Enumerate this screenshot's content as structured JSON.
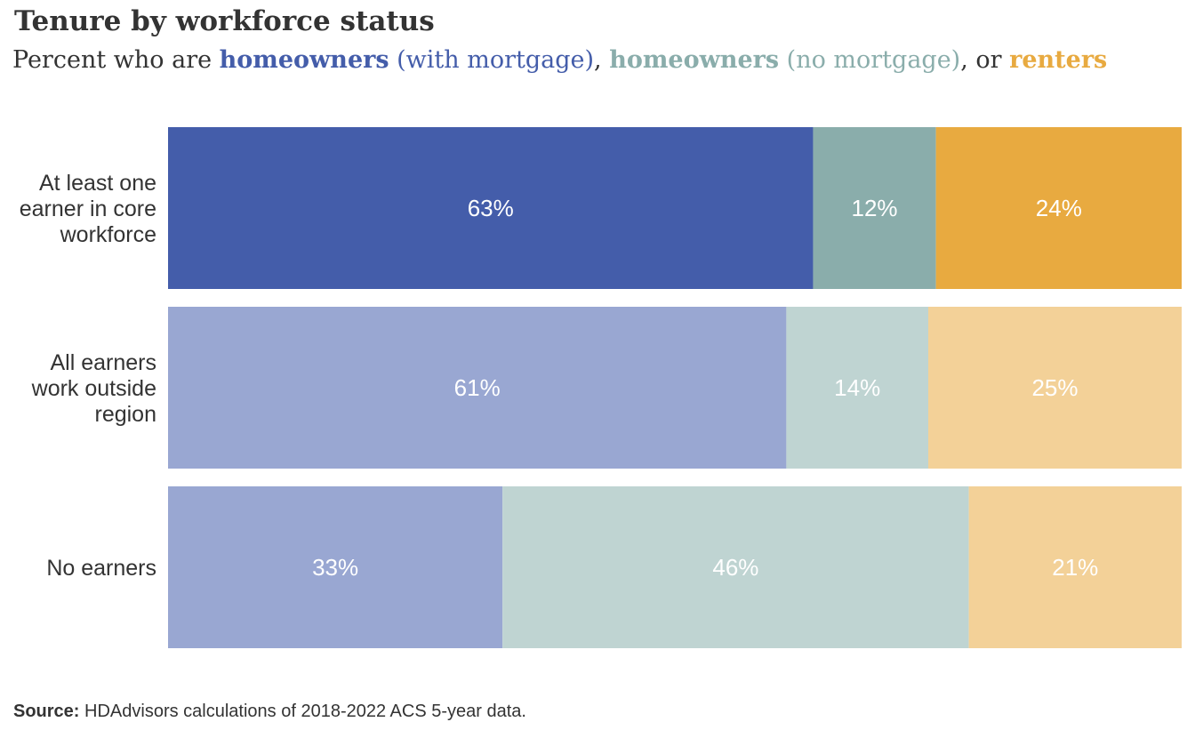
{
  "title": "Tenure by workforce status",
  "subtitle": {
    "prefix": "Percent who are ",
    "s1_bold": "homeowners",
    "s1_rest": " (with mortgage)",
    "sep1": ", ",
    "s2_bold": "homeowners",
    "s2_rest": " (no mortgage)",
    "sep2": ", or ",
    "s3_bold": "renters"
  },
  "source": {
    "label": "Source:",
    "text": " HDAdvisors  calculations of 2018-2022  ACS 5-year  data."
  },
  "colors": {
    "with_mortgage": "#445DAA",
    "with_mortgage_light": "#99A7D2",
    "no_mortgage": "#8AADAB",
    "no_mortgage_light": "#BFD4D2",
    "renters": "#E8AA40",
    "renters_light": "#F3D198",
    "text": "#333333"
  },
  "chart_data": {
    "type": "bar",
    "orientation": "horizontal",
    "stacked": true,
    "categories": [
      [
        "At least one",
        "earner in core",
        "workforce"
      ],
      [
        "All earners",
        "work outside",
        "region"
      ],
      [
        "No earners"
      ]
    ],
    "series": [
      {
        "name": "homeowners (with mortgage)",
        "values": [
          63,
          61,
          33
        ],
        "labels": [
          "63%",
          "61%",
          "33%"
        ]
      },
      {
        "name": "homeowners (no mortgage)",
        "values": [
          12,
          14,
          46
        ],
        "labels": [
          "12%",
          "14%",
          "46%"
        ]
      },
      {
        "name": "renters",
        "values": [
          24,
          25,
          21
        ],
        "labels": [
          "24%",
          "25%",
          "21%"
        ]
      }
    ],
    "highlighted_category": 0,
    "grid": false,
    "legend": "subtitle"
  }
}
